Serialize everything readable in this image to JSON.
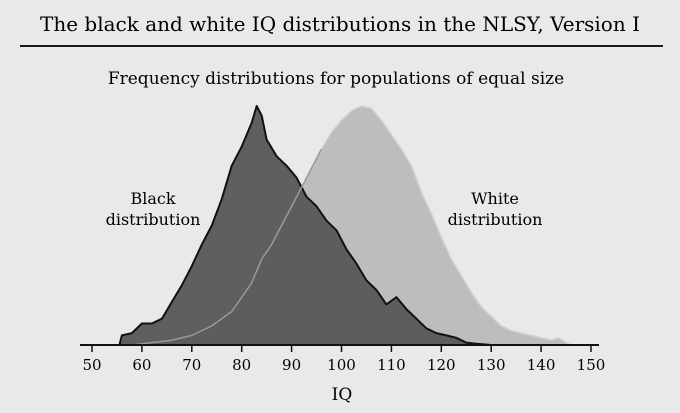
{
  "header": {
    "title": "The black and white IQ distributions in the NLSY, Version I"
  },
  "colors": {
    "background": "#e9e9e9",
    "black_fill": "#5a5a5a",
    "black_stroke": "#111111",
    "white_fill": "#bdbdbd",
    "white_stroke": "#d0d0d0"
  },
  "chart_data": {
    "type": "area",
    "title": "Frequency distributions for populations of equal size",
    "xlabel": "IQ",
    "ylabel": "",
    "xlim": [
      50,
      150
    ],
    "ylim": [
      0,
      1
    ],
    "xticks": [
      50,
      60,
      70,
      80,
      90,
      100,
      110,
      120,
      130,
      140,
      150
    ],
    "grid": false,
    "series": [
      {
        "name": "White distribution",
        "label_lines": [
          "White",
          "distribution"
        ],
        "points": [
          [
            58,
            0.0
          ],
          [
            62,
            0.01
          ],
          [
            66,
            0.02
          ],
          [
            70,
            0.04
          ],
          [
            74,
            0.08
          ],
          [
            78,
            0.14
          ],
          [
            82,
            0.26
          ],
          [
            84,
            0.36
          ],
          [
            86,
            0.42
          ],
          [
            88,
            0.5
          ],
          [
            90,
            0.58
          ],
          [
            92,
            0.66
          ],
          [
            94,
            0.74
          ],
          [
            96,
            0.82
          ],
          [
            98,
            0.89
          ],
          [
            100,
            0.94
          ],
          [
            102,
            0.98
          ],
          [
            104,
            1.0
          ],
          [
            106,
            0.99
          ],
          [
            108,
            0.94
          ],
          [
            110,
            0.88
          ],
          [
            112,
            0.82
          ],
          [
            114,
            0.75
          ],
          [
            116,
            0.64
          ],
          [
            118,
            0.55
          ],
          [
            120,
            0.45
          ],
          [
            122,
            0.36
          ],
          [
            124,
            0.29
          ],
          [
            126,
            0.22
          ],
          [
            128,
            0.16
          ],
          [
            130,
            0.12
          ],
          [
            132,
            0.08
          ],
          [
            134,
            0.06
          ],
          [
            136,
            0.05
          ],
          [
            138,
            0.04
          ],
          [
            140,
            0.03
          ],
          [
            142,
            0.02
          ],
          [
            143.5,
            0.03
          ],
          [
            145,
            0.01
          ],
          [
            146,
            0.0
          ]
        ]
      },
      {
        "name": "Black distribution",
        "label_lines": [
          "Black",
          "distribution"
        ],
        "points": [
          [
            55.5,
            0.0
          ],
          [
            56,
            0.04
          ],
          [
            58,
            0.05
          ],
          [
            60,
            0.09
          ],
          [
            62,
            0.09
          ],
          [
            64,
            0.11
          ],
          [
            66,
            0.18
          ],
          [
            68,
            0.25
          ],
          [
            70,
            0.33
          ],
          [
            72,
            0.42
          ],
          [
            74,
            0.5
          ],
          [
            76,
            0.61
          ],
          [
            78,
            0.75
          ],
          [
            80,
            0.83
          ],
          [
            82,
            0.93
          ],
          [
            83,
            1.0
          ],
          [
            84,
            0.96
          ],
          [
            85,
            0.86
          ],
          [
            87,
            0.79
          ],
          [
            89,
            0.75
          ],
          [
            91,
            0.7
          ],
          [
            93,
            0.62
          ],
          [
            95,
            0.58
          ],
          [
            97,
            0.52
          ],
          [
            99,
            0.48
          ],
          [
            101,
            0.4
          ],
          [
            103,
            0.34
          ],
          [
            105,
            0.27
          ],
          [
            107,
            0.23
          ],
          [
            109,
            0.17
          ],
          [
            111,
            0.2
          ],
          [
            113,
            0.15
          ],
          [
            115,
            0.11
          ],
          [
            117,
            0.07
          ],
          [
            119,
            0.05
          ],
          [
            121,
            0.04
          ],
          [
            123,
            0.03
          ],
          [
            125,
            0.01
          ],
          [
            127,
            0.005
          ],
          [
            130,
            0.0
          ]
        ]
      }
    ]
  }
}
